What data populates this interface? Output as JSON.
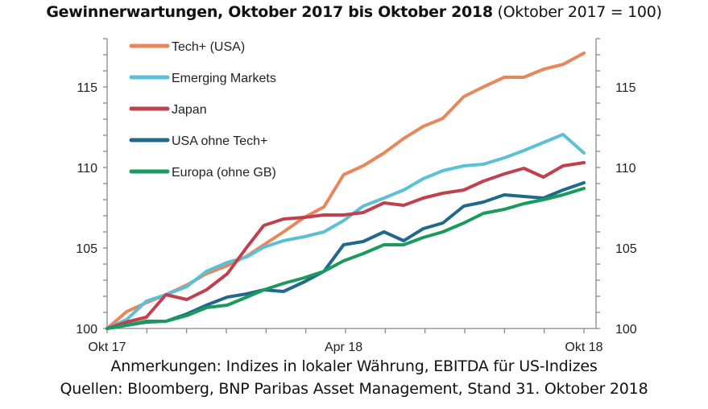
{
  "title": {
    "bold": "Gewinnerwartungen, Oktober 2017 bis Oktober 2018",
    "normal": "(Oktober 2017 = 100)"
  },
  "notes": [
    "Anmerkungen: Indizes in lokaler Währung, EBITDA für US-Indizes",
    "Quellen: Bloomberg, BNP Paribas Asset Management, Stand 31. Oktober 2018"
  ],
  "chart_data": {
    "type": "line",
    "title": "Gewinnerwartungen, Oktober 2017 bis Oktober 2018 (Oktober 2017 = 100)",
    "xlabel": "",
    "ylabel": "",
    "ylim": [
      100,
      118
    ],
    "yticks": [
      100,
      105,
      110,
      115
    ],
    "ytick_labels": [
      "100",
      "105",
      "110",
      "115"
    ],
    "secondary_y_axis": true,
    "xtick_labels": [
      "Okt 17",
      "Apr 18",
      "Okt 18"
    ],
    "xtick_dates": [
      "2017-10-31",
      "2018-04-30",
      "2018-10-31"
    ],
    "grid": false,
    "legend_position": "top-left",
    "x": [
      "2017-10-31",
      "2017-11-15",
      "2017-11-30",
      "2017-12-15",
      "2017-12-31",
      "2018-01-15",
      "2018-01-31",
      "2018-02-15",
      "2018-02-28",
      "2018-03-15",
      "2018-03-31",
      "2018-04-15",
      "2018-04-30",
      "2018-05-15",
      "2018-05-31",
      "2018-06-15",
      "2018-06-30",
      "2018-07-15",
      "2018-07-31",
      "2018-08-15",
      "2018-08-31",
      "2018-09-15",
      "2018-09-30",
      "2018-10-15",
      "2018-10-31"
    ],
    "series": [
      {
        "name": "Tech+ (USA)",
        "color": "#E8875A",
        "values": [
          100,
          101.05,
          101.6,
          102.1,
          102.7,
          103.4,
          103.9,
          104.5,
          105.2,
          106.0,
          106.9,
          107.55,
          109.55,
          110.1,
          110.9,
          111.8,
          112.55,
          113.05,
          114.4,
          115.0,
          115.6,
          115.6,
          116.1,
          116.4,
          117.1
        ]
      },
      {
        "name": "Emerging Markets",
        "color": "#5BC0D6",
        "values": [
          100,
          100.55,
          101.7,
          102.1,
          102.6,
          103.55,
          104.1,
          104.45,
          105.05,
          105.45,
          105.7,
          106.0,
          106.7,
          107.6,
          108.1,
          108.6,
          109.3,
          109.8,
          110.1,
          110.2,
          110.6,
          111.05,
          111.55,
          112.05,
          110.9
        ]
      },
      {
        "name": "Japan",
        "color": "#C0404E",
        "values": [
          100,
          100.4,
          100.7,
          102.1,
          101.8,
          102.4,
          103.4,
          105.05,
          106.4,
          106.8,
          106.9,
          107.05,
          107.05,
          107.2,
          107.8,
          107.65,
          108.1,
          108.4,
          108.6,
          109.15,
          109.6,
          109.95,
          109.4,
          110.1,
          110.3
        ]
      },
      {
        "name": "USA ohne Tech+",
        "color": "#1F6A8A",
        "values": [
          100,
          100.2,
          100.4,
          100.45,
          100.9,
          101.45,
          101.95,
          102.15,
          102.4,
          102.3,
          102.9,
          103.55,
          105.2,
          105.4,
          106.0,
          105.45,
          106.2,
          106.55,
          107.6,
          107.85,
          108.3,
          108.2,
          108.1,
          108.6,
          109.05
        ]
      },
      {
        "name": "Europa (ohne GB)",
        "color": "#1A9A5C",
        "values": [
          100,
          100.2,
          100.45,
          100.45,
          100.8,
          101.3,
          101.45,
          101.95,
          102.4,
          102.8,
          103.15,
          103.55,
          104.2,
          104.65,
          105.2,
          105.2,
          105.65,
          106.0,
          106.55,
          107.15,
          107.4,
          107.75,
          108.0,
          108.3,
          108.7
        ]
      }
    ]
  }
}
